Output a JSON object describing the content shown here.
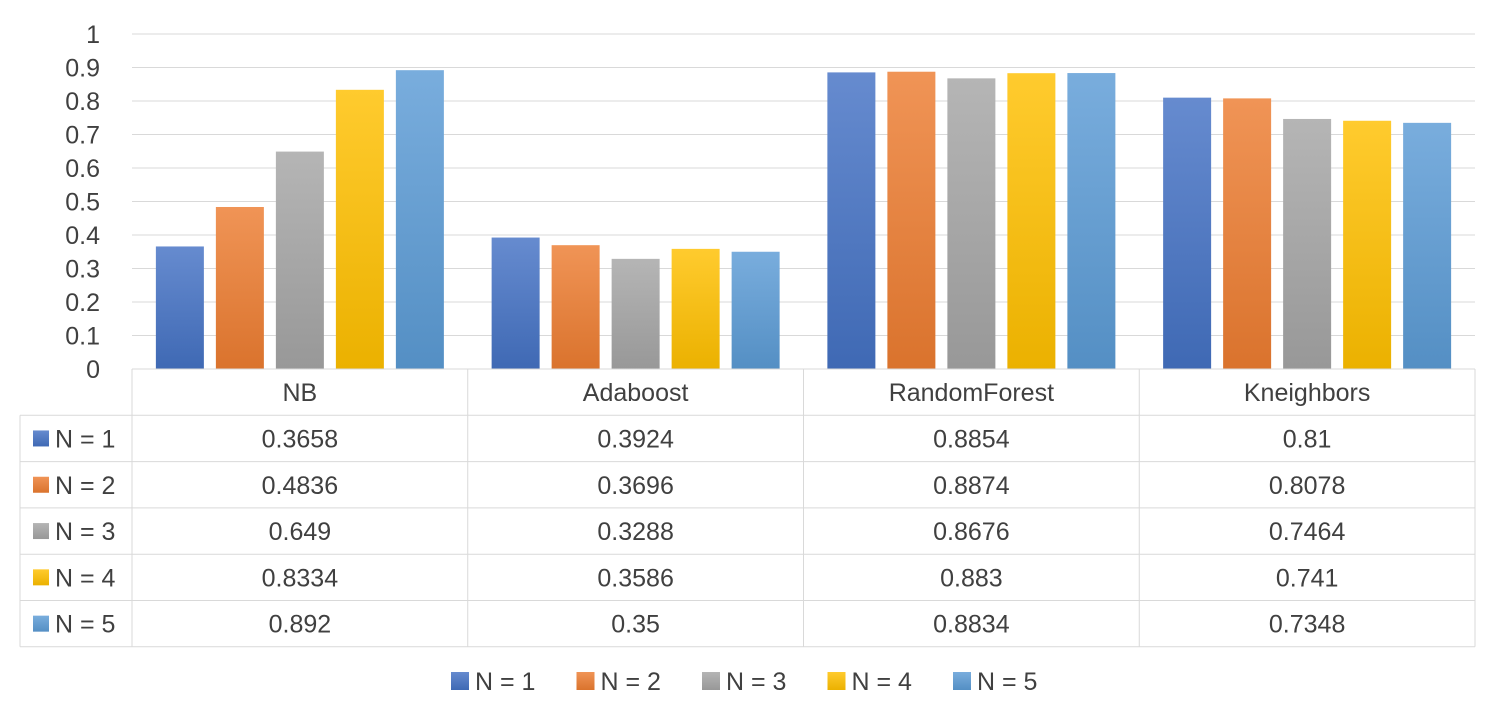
{
  "chart_data": {
    "type": "bar",
    "title": "",
    "xlabel": "",
    "ylabel": "",
    "ylim": [
      0,
      1
    ],
    "yticks": [
      "0",
      "0.1",
      "0.2",
      "0.3",
      "0.4",
      "0.5",
      "0.6",
      "0.7",
      "0.8",
      "0.9",
      "1"
    ],
    "grid": true,
    "legend_position": "bottom",
    "data_table": true,
    "categories": [
      "NB",
      "Adaboost",
      "RandomForest",
      "Kneighbors"
    ],
    "series": [
      {
        "name": "N = 1",
        "color": "#4472C4",
        "values": [
          0.3658,
          0.3924,
          0.8854,
          0.81
        ]
      },
      {
        "name": "N = 2",
        "color": "#ED7D31",
        "values": [
          0.4836,
          0.3696,
          0.8874,
          0.8078
        ]
      },
      {
        "name": "N = 3",
        "color": "#A5A5A5",
        "values": [
          0.649,
          0.3288,
          0.8676,
          0.7464
        ]
      },
      {
        "name": "N = 4",
        "color": "#FFC000",
        "values": [
          0.8334,
          0.3586,
          0.883,
          0.741
        ]
      },
      {
        "name": "N = 5",
        "color": "#5B9BD5",
        "values": [
          0.892,
          0.35,
          0.8834,
          0.7348
        ]
      }
    ]
  }
}
